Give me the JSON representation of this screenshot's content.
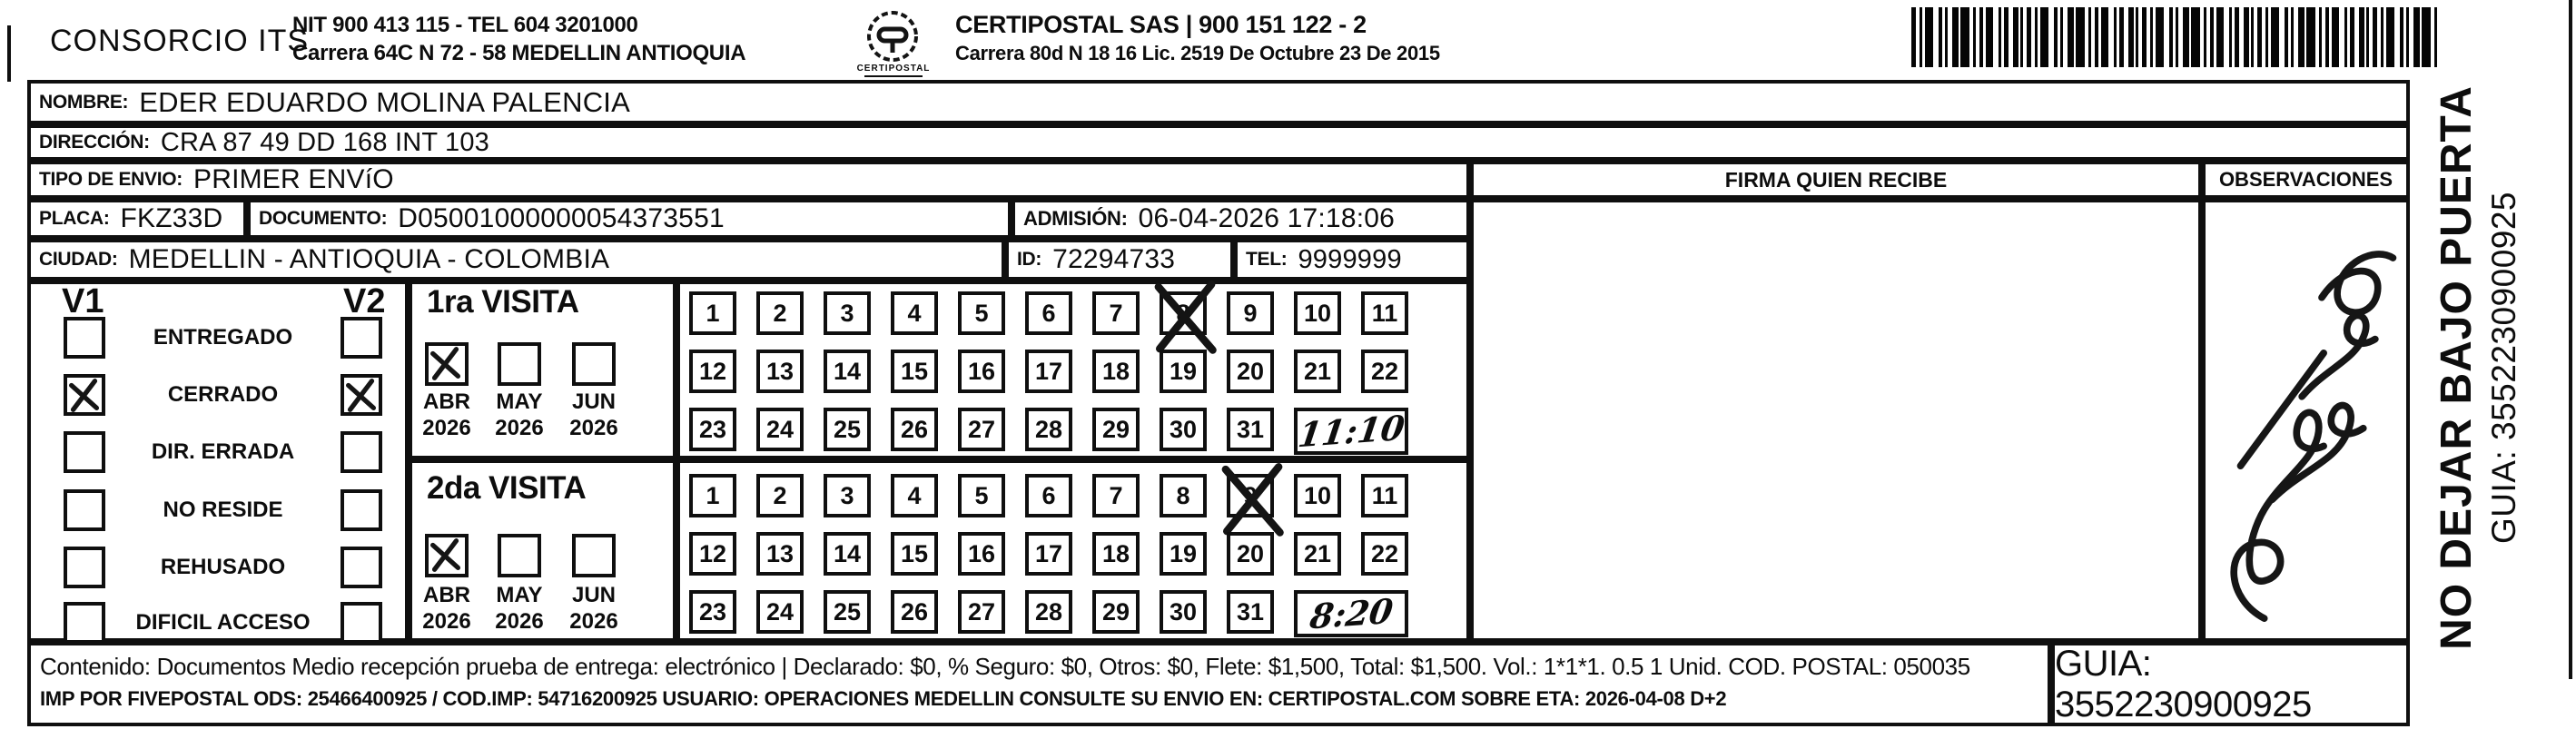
{
  "header": {
    "company": "CONSORCIO ITS",
    "nit_line1": "NIT 900 413 115 - TEL 604 3201000",
    "nit_line2": "Carrera 64C N 72 - 58 MEDELLIN ANTIOQUIA",
    "logo_caption": "CERTIPOSTAL",
    "partner_line1": "CERTIPOSTAL SAS | 900 151 122 - 2",
    "partner_line2": "Carrera 80d N 18 16  Lic. 2519 De Octubre 23 De 2015"
  },
  "recipient": {
    "nombre_label": "NOMBRE:",
    "nombre": "EDER EDUARDO MOLINA PALENCIA",
    "direccion_label": "DIRECCIÓN:",
    "direccion": "CRA 87  49 DD 168 INT 103",
    "tipo_label": "TIPO DE ENVIO:",
    "tipo": "PRIMER ENVíO",
    "placa_label": "PLACA:",
    "placa": "FKZ33D",
    "documento_label": "DOCUMENTO:",
    "documento": "D05001000000054373551",
    "admision_label": "ADMISIÓN:",
    "admision": "06-04-2026 17:18:06",
    "ciudad_label": "CIUDAD:",
    "ciudad": "MEDELLIN - ANTIOQUIA - COLOMBIA",
    "id_label": "ID:",
    "id": "72294733",
    "tel_label": "TEL:",
    "tel": "9999999"
  },
  "columns": {
    "firma": "FIRMA QUIEN RECIBE",
    "observaciones": "OBSERVACIONES"
  },
  "status_panel": {
    "v1": "V1",
    "v2": "V2",
    "items": [
      {
        "label": "ENTREGADO",
        "v1": false,
        "v2": false
      },
      {
        "label": "CERRADO",
        "v1": true,
        "v2": true
      },
      {
        "label": "DIR. ERRADA",
        "v1": false,
        "v2": false
      },
      {
        "label": "NO RESIDE",
        "v1": false,
        "v2": false
      },
      {
        "label": "REHUSADO",
        "v1": false,
        "v2": false
      },
      {
        "label": "DIFICIL ACCESO",
        "v1": false,
        "v2": false
      }
    ]
  },
  "visits": [
    {
      "title": "1ra VISITA",
      "months": [
        {
          "label": "ABR",
          "year": "2026",
          "checked": true
        },
        {
          "label": "MAY",
          "year": "2026",
          "checked": false
        },
        {
          "label": "JUN",
          "year": "2026",
          "checked": false
        }
      ],
      "days": 31,
      "crossed_day": 8,
      "time": "11:10"
    },
    {
      "title": "2da VISITA",
      "months": [
        {
          "label": "ABR",
          "year": "2026",
          "checked": true
        },
        {
          "label": "MAY",
          "year": "2026",
          "checked": false
        },
        {
          "label": "JUN",
          "year": "2026",
          "checked": false
        }
      ],
      "days": 31,
      "crossed_day": 9,
      "time": "8:20"
    }
  ],
  "side": {
    "warning": "NO DEJAR BAJO PUERTA",
    "guia": "GUIA: 3552230900925"
  },
  "footer": {
    "line1": "Contenido: Documentos Medio recepción prueba de entrega: electrónico | Declarado: $0, % Seguro: $0, Otros: $0, Flete: $1,500, Total: $1,500. Vol.: 1*1*1. 0.5 1 Unid. COD. POSTAL: 050035",
    "line2": "IMP POR FIVEPOSTAL ODS: 25466400925 / COD.IMP: 54716200925 USUARIO: OPERACIONES MEDELLIN CONSULTE SU ENVIO EN: CERTIPOSTAL.COM SOBRE ETA: 2026-04-08 D+2",
    "guia_box": "GUIA: 3552230900925"
  }
}
